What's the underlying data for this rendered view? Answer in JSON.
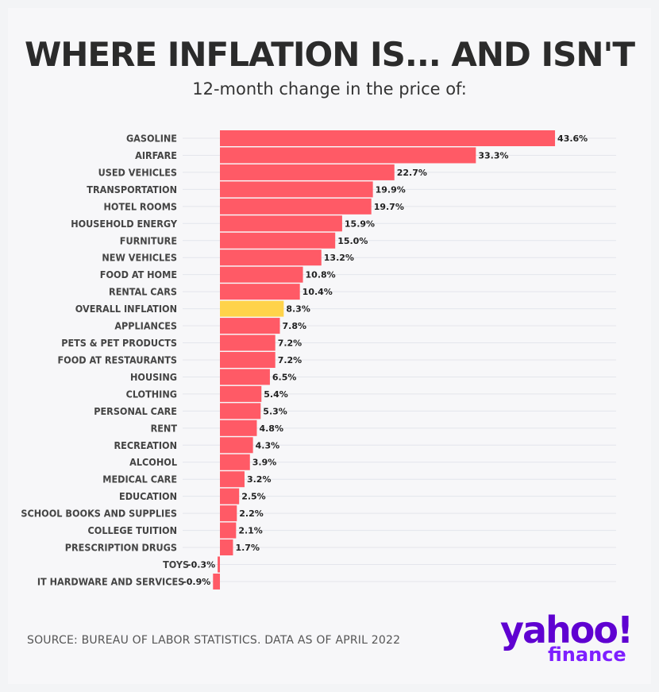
{
  "header": {
    "title": "WHERE INFLATION IS... AND ISN'T",
    "subtitle": "12-month change in the price of:"
  },
  "chart_data": {
    "type": "bar",
    "orientation": "horizontal",
    "title": "WHERE INFLATION IS... AND ISN'T",
    "subtitle": "12-month change in the price of:",
    "xlabel": "",
    "ylabel": "",
    "unit": "%",
    "grid": true,
    "categories": [
      "GASOLINE",
      "AIRFARE",
      "USED VEHICLES",
      "TRANSPORTATION",
      "HOTEL ROOMS",
      "HOUSEHOLD ENERGY",
      "FURNITURE",
      "NEW VEHICLES",
      "FOOD AT HOME",
      "RENTAL CARS",
      "OVERALL INFLATION",
      "APPLIANCES",
      "PETS & PET PRODUCTS",
      "FOOD AT RESTAURANTS",
      "HOUSING",
      "CLOTHING",
      "PERSONAL CARE",
      "RENT",
      "RECREATION",
      "ALCOHOL",
      "MEDICAL CARE",
      "EDUCATION",
      "SCHOOL BOOKS AND SUPPLIES",
      "COLLEGE TUITION",
      "PRESCRIPTION DRUGS",
      "TOYS",
      "IT HARDWARE AND SERVICES"
    ],
    "values": [
      43.6,
      33.3,
      22.7,
      19.9,
      19.7,
      15.9,
      15.0,
      13.2,
      10.8,
      10.4,
      8.3,
      7.8,
      7.2,
      7.2,
      6.5,
      5.4,
      5.3,
      4.8,
      4.3,
      3.9,
      3.2,
      2.5,
      2.2,
      2.1,
      1.7,
      -0.3,
      -0.9
    ],
    "value_labels": [
      "43.6%",
      "33.3%",
      "22.7%",
      "19.9%",
      "19.7%",
      "15.9%",
      "15.0%",
      "13.2%",
      "10.8%",
      "10.4%",
      "8.3%",
      "7.8%",
      "7.2%",
      "7.2%",
      "6.5%",
      "5.4%",
      "5.3%",
      "4.8%",
      "4.3%",
      "3.9%",
      "3.2%",
      "2.5%",
      "2.2%",
      "2.1%",
      "1.7%",
      "-0.3%",
      "-0.9%"
    ],
    "highlight_category": "OVERALL INFLATION",
    "colors": {
      "bar": "#ff5a66",
      "highlight": "#ffd34a",
      "grid": "#e4e6ec"
    }
  },
  "footer": {
    "source": "SOURCE: BUREAU OF LABOR STATISTICS. DATA AS OF APRIL 2022",
    "logo_yahoo": "yahoo!",
    "logo_finance": "finance",
    "logo_color": "#5f01d1"
  }
}
